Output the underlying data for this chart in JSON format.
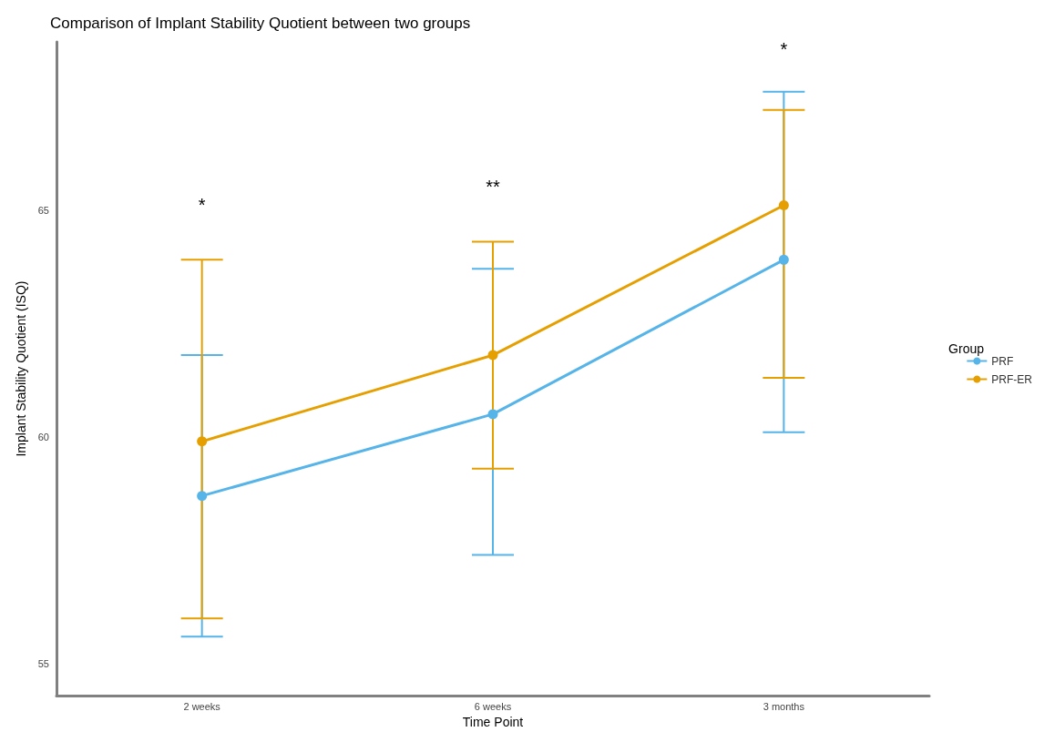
{
  "chart_data": {
    "type": "line",
    "title": "Comparison of Implant Stability Quotient between two groups",
    "xlabel": "Time Point",
    "ylabel": "Implant Stability Quotient (ISQ)",
    "legend_title": "Group",
    "categories": [
      "2 weeks",
      "6 weeks",
      "3 months"
    ],
    "series": [
      {
        "name": "PRF",
        "color": "#56b4e9",
        "values": [
          58.7,
          60.5,
          63.9
        ],
        "errors": [
          [
            55.6,
            61.8
          ],
          [
            57.4,
            63.7
          ],
          [
            60.1,
            67.6
          ]
        ]
      },
      {
        "name": "PRF-ER",
        "color": "#e69f00",
        "values": [
          59.9,
          61.8,
          65.1
        ],
        "errors": [
          [
            56.0,
            63.9
          ],
          [
            59.3,
            64.3
          ],
          [
            61.3,
            67.2
          ]
        ]
      }
    ],
    "ylim": [
      54.3,
      68.7
    ],
    "yticks": [
      55,
      60,
      65
    ],
    "grid": false,
    "legend": "right",
    "marker": "circle",
    "line_style": "solid",
    "annotations": [
      "*",
      "**",
      "*"
    ]
  }
}
